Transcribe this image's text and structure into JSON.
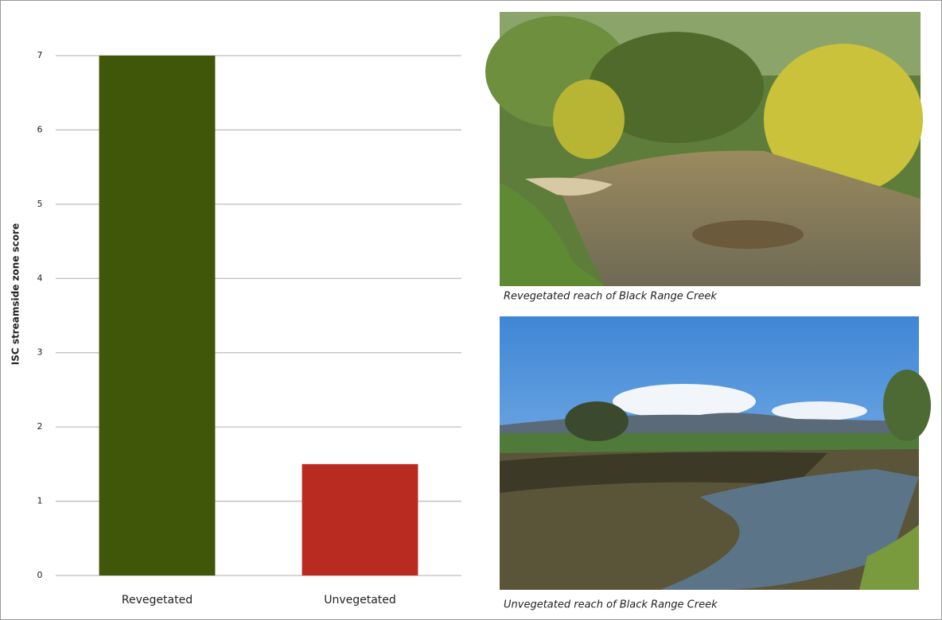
{
  "chart_data": {
    "type": "bar",
    "y_label": "ISC streamside zone score",
    "categories": [
      "Revegetated",
      "Unvegetated"
    ],
    "values": [
      7,
      1.5
    ],
    "colors": [
      "#405609",
      "#b92b20"
    ],
    "ylim": [
      0,
      7
    ],
    "yticks": [
      0,
      1,
      2,
      3,
      4,
      5,
      6,
      7
    ],
    "grid": true
  },
  "photos": [
    {
      "caption": "Revegetated reach of Black Range Creek"
    },
    {
      "caption": "Unvegetated reach of Black Range Creek"
    }
  ]
}
